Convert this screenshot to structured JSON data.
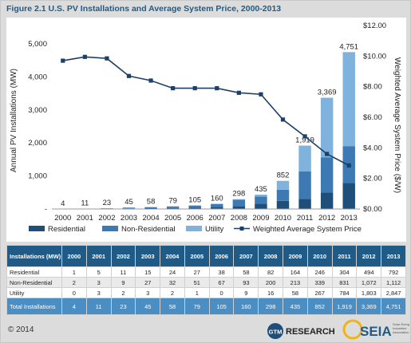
{
  "figure_title": "Figure 2.1  U.S. PV Installations and Average System Price, 2000-2013",
  "chart_data": {
    "type": "bar",
    "stacked": true,
    "categories": [
      "2000",
      "2001",
      "2002",
      "2003",
      "2004",
      "2005",
      "2006",
      "2007",
      "2008",
      "2009",
      "2010",
      "2011",
      "2012",
      "2013"
    ],
    "series": [
      {
        "name": "Residential",
        "color": "#1f4e79",
        "values": [
          1,
          5,
          11,
          15,
          24,
          27,
          38,
          58,
          82,
          164,
          246,
          304,
          494,
          792
        ]
      },
      {
        "name": "Non-Residential",
        "color": "#3d7ab3",
        "values": [
          2,
          3,
          9,
          27,
          32,
          51,
          67,
          93,
          200,
          213,
          339,
          831,
          1072,
          1112
        ]
      },
      {
        "name": "Utility",
        "color": "#7fb2dd",
        "values": [
          0,
          3,
          2,
          3,
          2,
          1,
          0,
          9,
          16,
          58,
          267,
          784,
          1803,
          2847
        ]
      }
    ],
    "totals": [
      4,
      11,
      23,
      45,
      58,
      79,
      105,
      160,
      298,
      435,
      852,
      1919,
      3369,
      4751
    ],
    "total_labels": [
      "4",
      "11",
      "23",
      "45",
      "58",
      "79",
      "105",
      "160",
      "298",
      "435",
      "852",
      "1,919",
      "3,369",
      "4,751"
    ],
    "line": {
      "name": "Weighted Average System Price",
      "color": "#1e3f66",
      "axis": "right",
      "values": [
        9.7,
        9.95,
        9.85,
        8.7,
        8.4,
        7.9,
        7.9,
        7.9,
        7.6,
        7.5,
        5.85,
        4.75,
        3.6,
        2.85
      ]
    },
    "ylabel": "Annual PV Installations (MW)",
    "y2label": "Weighted Average System Price ($/W)",
    "ylim": [
      0,
      5000
    ],
    "y2lim": [
      0,
      12
    ],
    "yticks": [
      "-",
      "1,000",
      "2,000",
      "3,000",
      "4,000",
      "5,000"
    ],
    "y2ticks": [
      "$0.00",
      "$2.00",
      "$4.00",
      "$6.00",
      "$8.00",
      "$10.00",
      "$12.00"
    ],
    "legend_position": "bottom",
    "grid": false
  },
  "table": {
    "header_label": "Installations (MW)",
    "years": [
      "2000",
      "2001",
      "2002",
      "2003",
      "2004",
      "2005",
      "2006",
      "2007",
      "2008",
      "2009",
      "2010",
      "2011",
      "2012",
      "2013"
    ],
    "rows": [
      {
        "label": "Residential",
        "cells": [
          "1",
          "5",
          "11",
          "15",
          "24",
          "27",
          "38",
          "58",
          "82",
          "164",
          "246",
          "304",
          "494",
          "792"
        ]
      },
      {
        "label": "Non-Residential",
        "cells": [
          "2",
          "3",
          "9",
          "27",
          "32",
          "51",
          "67",
          "93",
          "200",
          "213",
          "339",
          "831",
          "1,072",
          "1,112"
        ]
      },
      {
        "label": "Utility",
        "cells": [
          "0",
          "3",
          "2",
          "3",
          "2",
          "1",
          "0",
          "9",
          "16",
          "58",
          "267",
          "784",
          "1,803",
          "2,847"
        ]
      },
      {
        "label": "Total Installations",
        "cells": [
          "4",
          "11",
          "23",
          "45",
          "58",
          "79",
          "105",
          "160",
          "298",
          "435",
          "852",
          "1,919",
          "3,369",
          "4,751"
        ]
      }
    ]
  },
  "footer": {
    "copyright": "© 2014",
    "gtm": "GTM",
    "research": "RESEARCH",
    "seia": "SEIA",
    "seia_tag": "Solar Energy Industries Association"
  }
}
